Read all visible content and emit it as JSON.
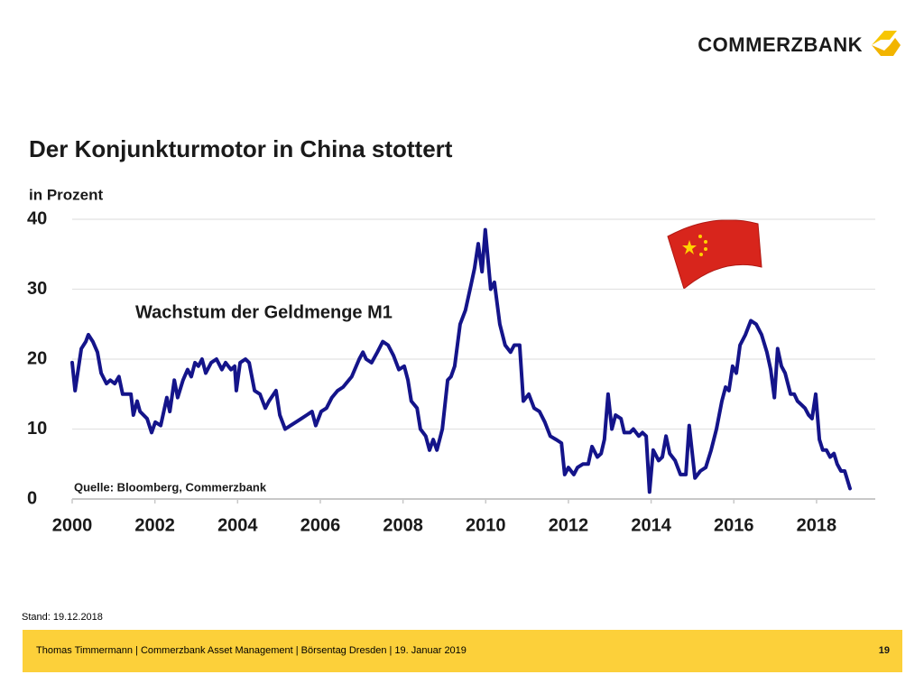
{
  "logo": "COMMERZBANK",
  "chart_data": {
    "type": "line",
    "title": "Der Konjunkturmotor in China stottert",
    "y_label": "in Prozent",
    "annotation": "Wachstum der Geldmenge M1",
    "source": "Quelle: Bloomberg, Commerzbank",
    "color": "#14148a",
    "grid": true,
    "xlim": [
      2000,
      2019.42
    ],
    "xticks": [
      2000,
      2002,
      2004,
      2006,
      2008,
      2010,
      2012,
      2014,
      2016,
      2018
    ],
    "ylim": [
      0,
      40
    ],
    "yticks": [
      0,
      10,
      20,
      30,
      40
    ],
    "x": [
      2000.0,
      2000.07,
      2000.22,
      2000.33,
      2000.39,
      2000.5,
      2000.61,
      2000.7,
      2000.83,
      2000.92,
      2001.03,
      2001.13,
      2001.22,
      2001.42,
      2001.48,
      2001.57,
      2001.64,
      2001.81,
      2001.92,
      2002.01,
      2002.14,
      2002.29,
      2002.36,
      2002.47,
      2002.55,
      2002.68,
      2002.79,
      2002.88,
      2002.97,
      2003.05,
      2003.14,
      2003.23,
      2003.36,
      2003.49,
      2003.62,
      2003.71,
      2003.84,
      2003.93,
      2003.97,
      2004.06,
      2004.19,
      2004.28,
      2004.41,
      2004.54,
      2004.67,
      2004.76,
      2004.93,
      2005.02,
      2005.15,
      2005.28,
      2005.41,
      2005.54,
      2005.67,
      2005.8,
      2005.89,
      2006.02,
      2006.15,
      2006.28,
      2006.42,
      2006.55,
      2006.76,
      2006.94,
      2007.03,
      2007.11,
      2007.24,
      2007.38,
      2007.51,
      2007.64,
      2007.77,
      2007.9,
      2008.03,
      2008.12,
      2008.2,
      2008.34,
      2008.42,
      2008.55,
      2008.64,
      2008.73,
      2008.82,
      2008.95,
      2009.08,
      2009.16,
      2009.25,
      2009.38,
      2009.51,
      2009.64,
      2009.73,
      2009.82,
      2009.91,
      2009.99,
      2010.12,
      2010.21,
      2010.34,
      2010.47,
      2010.6,
      2010.69,
      2010.82,
      2010.91,
      2011.04,
      2011.17,
      2011.3,
      2011.43,
      2011.56,
      2011.7,
      2011.83,
      2011.91,
      2012.0,
      2012.13,
      2012.22,
      2012.35,
      2012.48,
      2012.57,
      2012.7,
      2012.79,
      2012.87,
      2012.96,
      2013.05,
      2013.14,
      2013.27,
      2013.35,
      2013.49,
      2013.57,
      2013.7,
      2013.79,
      2013.88,
      2013.96,
      2014.05,
      2014.18,
      2014.27,
      2014.36,
      2014.45,
      2014.58,
      2014.71,
      2014.84,
      2014.92,
      2015.06,
      2015.19,
      2015.32,
      2015.45,
      2015.58,
      2015.71,
      2015.8,
      2015.88,
      2015.97,
      2016.06,
      2016.15,
      2016.28,
      2016.41,
      2016.54,
      2016.67,
      2016.8,
      2016.89,
      2016.98,
      2017.06,
      2017.15,
      2017.24,
      2017.37,
      2017.46,
      2017.54,
      2017.63,
      2017.72,
      2017.81,
      2017.89,
      2017.98,
      2018.07,
      2018.15,
      2018.24,
      2018.33,
      2018.42,
      2018.5,
      2018.59,
      2018.68,
      2018.81
    ],
    "values": [
      19.5,
      15.5,
      21.5,
      22.5,
      23.5,
      22.5,
      21,
      18,
      16.5,
      17,
      16.5,
      17.5,
      15,
      15,
      12,
      14,
      12.5,
      11.5,
      9.5,
      11,
      10.5,
      14.5,
      12.5,
      17,
      14.5,
      17,
      18.5,
      17.5,
      19.5,
      19,
      20,
      18,
      19.5,
      20,
      18.5,
      19.5,
      18.5,
      19,
      15.5,
      19.5,
      20,
      19.5,
      15.5,
      15,
      13,
      14,
      15.5,
      12,
      10,
      10.5,
      11,
      11.5,
      12,
      12.5,
      10.5,
      12.5,
      13,
      14.5,
      15.5,
      16,
      17.5,
      20,
      21,
      20,
      19.5,
      21,
      22.5,
      22,
      20.5,
      18.5,
      19,
      17,
      14,
      13,
      10,
      9,
      7,
      8.5,
      7,
      10,
      17,
      17.5,
      19,
      25,
      27,
      30.5,
      33,
      36.5,
      32.5,
      38.5,
      30,
      31,
      25,
      22,
      21,
      22,
      22,
      14,
      15,
      13,
      12.5,
      11,
      9,
      8.5,
      8,
      3.5,
      4.5,
      3.5,
      4.5,
      5,
      5,
      7.5,
      6,
      6.5,
      8.5,
      15,
      10,
      12,
      11.5,
      9.5,
      9.5,
      10,
      9,
      9.5,
      9,
      1,
      7,
      5.5,
      6,
      9,
      6.5,
      5.5,
      3.5,
      3.5,
      10.5,
      3,
      4,
      4.5,
      7,
      10,
      14,
      16,
      15.5,
      19,
      18,
      22,
      23.5,
      25.5,
      25,
      23.5,
      21,
      18.5,
      14.5,
      21.5,
      19,
      18,
      15,
      15,
      14,
      13.5,
      13,
      12,
      11.5,
      15,
      8.5,
      7,
      7,
      6,
      6.5,
      5,
      4,
      4,
      1.5
    ]
  },
  "stand": "Stand: 19.12.2018",
  "footer": {
    "text": "Thomas Timmermann | Commerzbank Asset Management | Börsentag Dresden | 19. Januar 2019",
    "page": "19"
  }
}
